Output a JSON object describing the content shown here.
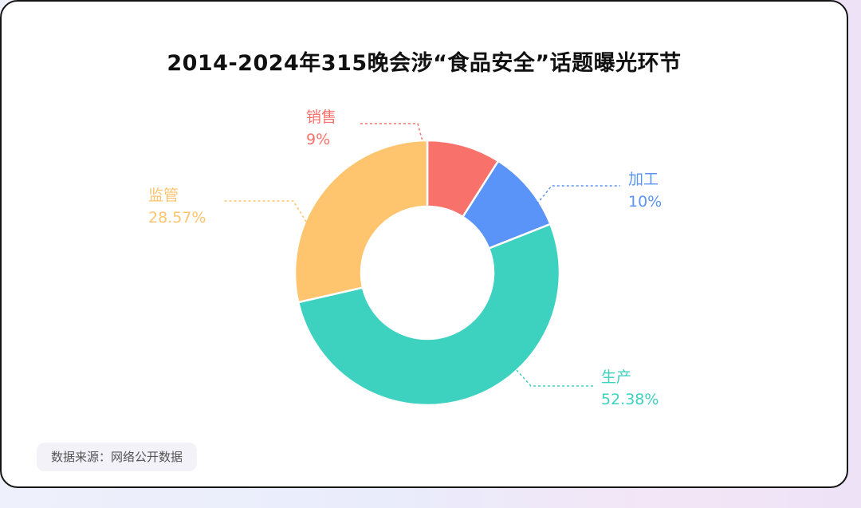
{
  "colors": {
    "销售": "#F8716B",
    "加工": "#5B94F8",
    "生产": "#3DD1BF",
    "监管": "#FEC46E",
    "title": "#111111"
  },
  "chart_data": {
    "type": "pie",
    "title": "2014-2024年315晚会涉“食品安全”话题曝光环节",
    "source": "数据来源：网络公开数据",
    "categories": [
      "销售",
      "加工",
      "生产",
      "监管"
    ],
    "values": [
      9,
      10,
      52.38,
      28.57
    ],
    "value_labels": [
      "9%",
      "10%",
      "52.38%",
      "28.57%"
    ],
    "donut": true
  }
}
